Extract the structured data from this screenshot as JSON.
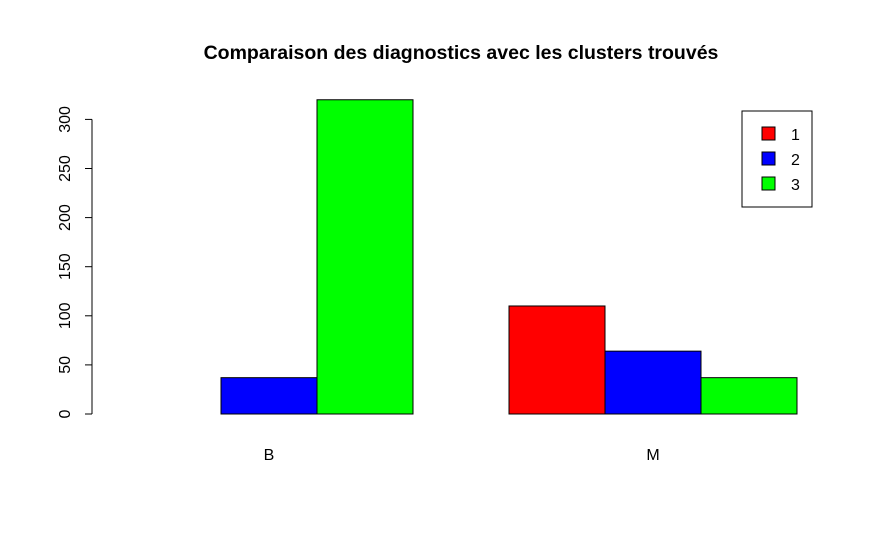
{
  "chart_data": {
    "type": "bar",
    "layout": "grouped",
    "title": "Comparaison des diagnostics avec les clusters trouvés",
    "xlabel": "",
    "ylabel": "",
    "categories": [
      "B",
      "M"
    ],
    "series": [
      {
        "name": "1",
        "values": [
          0,
          110
        ],
        "color": "#ff0000"
      },
      {
        "name": "2",
        "values": [
          37,
          64
        ],
        "color": "#0000ff"
      },
      {
        "name": "3",
        "values": [
          320,
          37
        ],
        "color": "#00ff00"
      }
    ],
    "yticks": [
      0,
      50,
      100,
      150,
      200,
      250,
      300
    ],
    "ylim": [
      0,
      320
    ],
    "grid": false,
    "legend": {
      "placement": "top-right",
      "entries": [
        "1",
        "2",
        "3"
      ]
    }
  }
}
